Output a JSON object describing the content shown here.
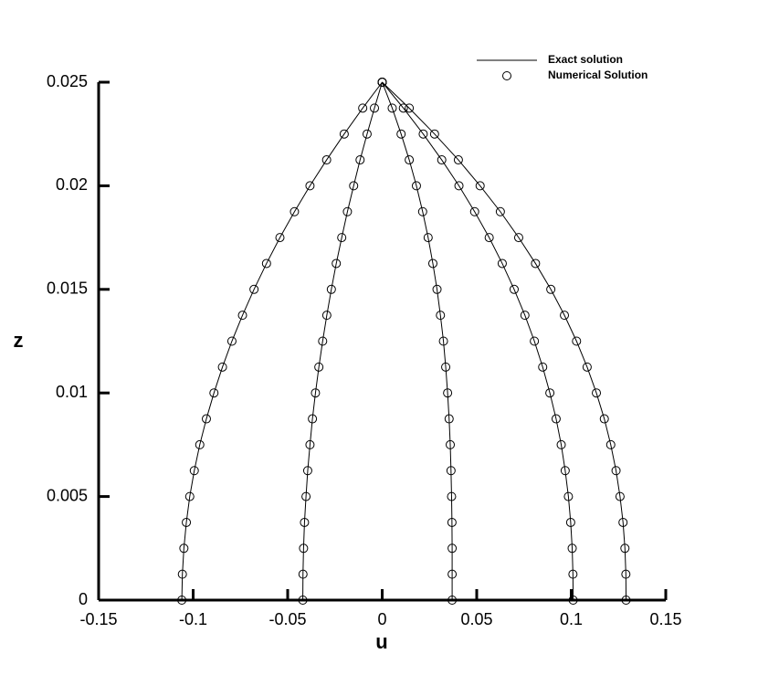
{
  "chart_data": {
    "type": "line",
    "x_label": "u",
    "y_label": "z",
    "xlim": [
      -0.15,
      0.15
    ],
    "xticks": [
      -0.15,
      -0.1,
      -0.05,
      0,
      0.05,
      0.1,
      0.15
    ],
    "ylim": [
      0,
      0.025
    ],
    "yticks": [
      0,
      0.005,
      0.01,
      0.015,
      0.02,
      0.025
    ],
    "legend": "top-right",
    "legend_line": "Exact solution",
    "legend_marker": "Numerical Solution",
    "color": "#000000",
    "z": [
      0,
      0.00125,
      0.0025,
      0.00375,
      0.005,
      0.00625,
      0.0075,
      0.00875,
      0.01,
      0.01125,
      0.0125,
      0.01375,
      0.015,
      0.01625,
      0.0175,
      0.01875,
      0.02,
      0.02125,
      0.0225,
      0.02375,
      0.025
    ],
    "series": [
      {
        "u": [
          -0.106,
          -0.1057,
          -0.1049,
          -0.1036,
          -0.1018,
          -0.0994,
          -0.0965,
          -0.093,
          -0.089,
          -0.0845,
          -0.0795,
          -0.0739,
          -0.0678,
          -0.0612,
          -0.0541,
          -0.0464,
          -0.0382,
          -0.0294,
          -0.0201,
          -0.0103,
          0
        ]
      },
      {
        "u": [
          -0.042,
          -0.0419,
          -0.0416,
          -0.0411,
          -0.0403,
          -0.0394,
          -0.0382,
          -0.0369,
          -0.0353,
          -0.0335,
          -0.0315,
          -0.0293,
          -0.0269,
          -0.0243,
          -0.0214,
          -0.0184,
          -0.0151,
          -0.0117,
          -0.008,
          -0.0041,
          0
        ]
      },
      {
        "u": [
          0.037,
          0.037,
          0.037,
          0.0369,
          0.0367,
          0.0364,
          0.036,
          0.0354,
          0.0346,
          0.0336,
          0.0324,
          0.0308,
          0.029,
          0.0268,
          0.0243,
          0.0214,
          0.0181,
          0.0143,
          0.01,
          0.0053,
          0
        ]
      },
      {
        "u": [
          0.101,
          0.1009,
          0.1005,
          0.0997,
          0.0985,
          0.0968,
          0.0947,
          0.092,
          0.0887,
          0.0849,
          0.0805,
          0.0755,
          0.0698,
          0.0635,
          0.0566,
          0.0489,
          0.0406,
          0.0315,
          0.0217,
          0.0112,
          0
        ]
      },
      {
        "u": [
          0.129,
          0.1289,
          0.1284,
          0.1274,
          0.1258,
          0.1237,
          0.1209,
          0.1175,
          0.1133,
          0.1084,
          0.1028,
          0.0964,
          0.0892,
          0.0811,
          0.0722,
          0.0625,
          0.0518,
          0.0403,
          0.0277,
          0.0143,
          0
        ]
      }
    ]
  }
}
